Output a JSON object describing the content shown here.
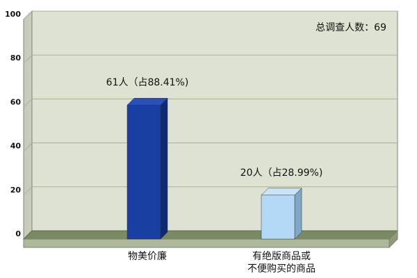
{
  "chart_data": {
    "type": "bar",
    "categories": [
      [
        "物美价廉"
      ],
      [
        "有绝版商品或",
        "不便购买的商品"
      ]
    ],
    "values": [
      61,
      20
    ],
    "data_labels": [
      "61人（占88.41%)",
      "20人（占28.99%)"
    ],
    "total_label": "总调查人数：69",
    "yticks": [
      0,
      20,
      40,
      60,
      80,
      100
    ],
    "ylim": [
      0,
      100
    ],
    "grid": true,
    "colors": {
      "bar_1_front": "#1a3fa3",
      "bar_1_side": "#102a72",
      "bar_1_top": "#2b4fb8",
      "bar_2_front": "#b3d9f7",
      "bar_2_side": "#7fa8c8",
      "bar_2_top": "#c8e4fa",
      "plot_back": "#dde2d2",
      "plot_wall": "#c8cdbb",
      "floor_top": "#7a8a62",
      "floor_front": "#aeb89a",
      "gridline": "#a9b096"
    }
  }
}
